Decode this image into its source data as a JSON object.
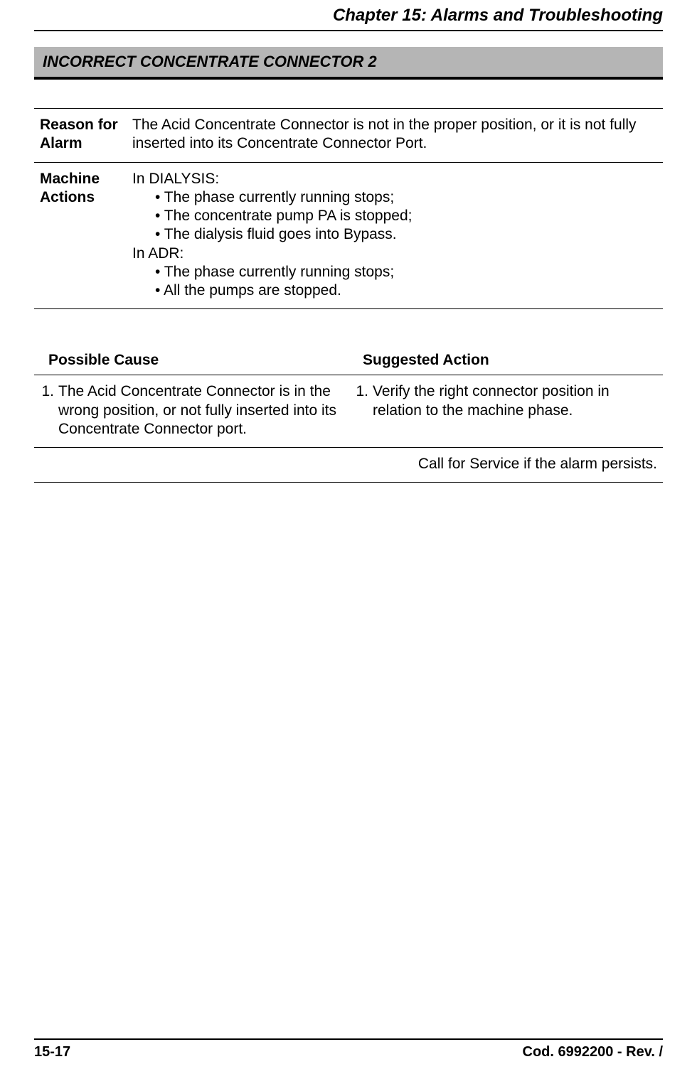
{
  "header": {
    "chapter_title": "Chapter 15: Alarms and Troubleshooting"
  },
  "alarm": {
    "title": "INCORRECT CONCENTRATE CONNECTOR 2"
  },
  "rows": {
    "reason": {
      "label": "Reason for Alarm",
      "text": "The Acid Concentrate Connector is not in the proper position, or it is not fully inserted into its Concentrate Connector Port."
    },
    "machine_actions": {
      "label": "Machine Actions",
      "dialysis_label": "In DIALYSIS:",
      "dialysis_bullets": [
        "• The phase currently running stops;",
        "• The concentrate pump PA is stopped;",
        "• The dialysis fluid goes into Bypass."
      ],
      "adr_label": "In ADR:",
      "adr_bullets": [
        "• The phase currently running stops;",
        "• All the pumps are stopped."
      ]
    }
  },
  "cause_table": {
    "col1": "Possible Cause",
    "col2": "Suggested Action",
    "cause_num": "1.",
    "cause_text": "The Acid Concentrate Connector is in the wrong position, or not fully inserted into its Concentrate Connector port.",
    "action_num": "1.",
    "action_text": "Verify the right connector position in relation to the machine phase.",
    "service_text": "Call for Service if the alarm persists."
  },
  "footer": {
    "page": "15-17",
    "code": "Cod. 6992200 - Rev. /"
  },
  "colors": {
    "title_bg": "#b5b5b5",
    "border": "#000000",
    "text": "#000000",
    "page_bg": "#ffffff"
  },
  "typography": {
    "base_font": "Arial",
    "chapter_fontsize": 24,
    "title_fontsize": 22,
    "body_fontsize": 21,
    "footer_fontsize": 20
  }
}
